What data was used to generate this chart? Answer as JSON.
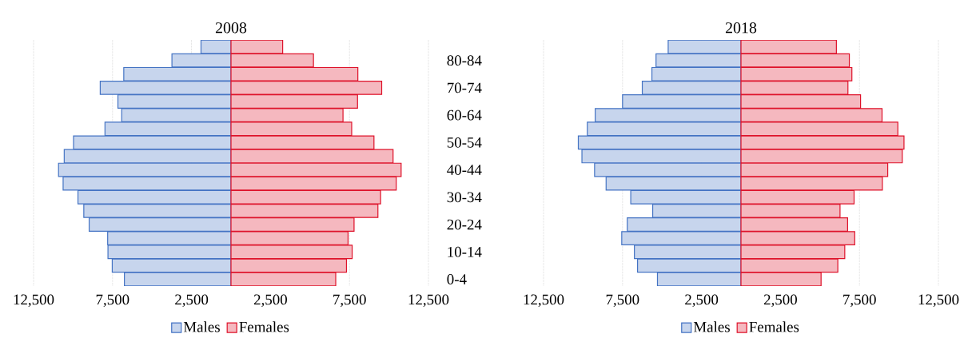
{
  "chart_data": [
    {
      "type": "bar",
      "title": "2008",
      "orientation": "horizontal",
      "stacked": true,
      "grid": "x",
      "legend": "bottom",
      "categories": [
        null,
        "80-84",
        null,
        "70-74",
        null,
        "60-64",
        null,
        "50-54",
        null,
        "40-44",
        null,
        "30-34",
        null,
        "20-24",
        null,
        "10-14",
        null,
        "0-4"
      ],
      "series": [
        {
          "name": "Males",
          "color": "#c7d5ed",
          "values": [
            -1900,
            -3740,
            -6790,
            -8280,
            -7160,
            -6920,
            -7980,
            -9970,
            -10560,
            -10920,
            -10630,
            -9690,
            -9320,
            -8980,
            -7810,
            -7790,
            -7520,
            -6750
          ]
        },
        {
          "name": "Females",
          "color": "#f5b8bf",
          "values": [
            3270,
            5220,
            8030,
            9540,
            8010,
            7090,
            7640,
            9050,
            10260,
            10770,
            10460,
            9470,
            9300,
            7790,
            7410,
            7670,
            7310,
            6630
          ]
        }
      ],
      "xlim": [
        -12500,
        12500
      ],
      "xticks": [
        {
          "value": -12500,
          "label": "12,500"
        },
        {
          "value": -7500,
          "label": "7,500"
        },
        {
          "value": -2500,
          "label": "2,500"
        },
        {
          "value": 2500,
          "label": "2,500"
        },
        {
          "value": 7500,
          "label": "7,500"
        },
        {
          "value": 12500,
          "label": "12,500"
        }
      ]
    },
    {
      "type": "bar",
      "title": "2018",
      "orientation": "horizontal",
      "stacked": true,
      "grid": "x",
      "legend": "bottom",
      "categories": [
        null,
        null,
        null,
        null,
        null,
        null,
        null,
        null,
        null,
        null,
        null,
        null,
        null,
        null,
        null,
        null,
        null,
        null
      ],
      "series": [
        {
          "name": "Males",
          "color": "#c7d5ed",
          "values": [
            -4610,
            -5380,
            -5640,
            -6250,
            -7500,
            -9230,
            -9730,
            -10300,
            -10070,
            -9270,
            -8540,
            -6980,
            -5590,
            -7200,
            -7550,
            -6750,
            -6550,
            -5290
          ]
        },
        {
          "name": "Females",
          "color": "#f5b8bf",
          "values": [
            6040,
            6860,
            7020,
            6770,
            7570,
            8930,
            9930,
            10320,
            10210,
            9290,
            8950,
            7160,
            6270,
            6750,
            7200,
            6570,
            6130,
            5070
          ]
        }
      ],
      "xlim": [
        -12500,
        12500
      ],
      "xticks": [
        {
          "value": -12500,
          "label": "12,500"
        },
        {
          "value": -7500,
          "label": "7,500"
        },
        {
          "value": -2500,
          "label": "2,500"
        },
        {
          "value": 2500,
          "label": "2,500"
        },
        {
          "value": 7500,
          "label": "7,500"
        },
        {
          "value": 12500,
          "label": "12,500"
        }
      ]
    }
  ]
}
